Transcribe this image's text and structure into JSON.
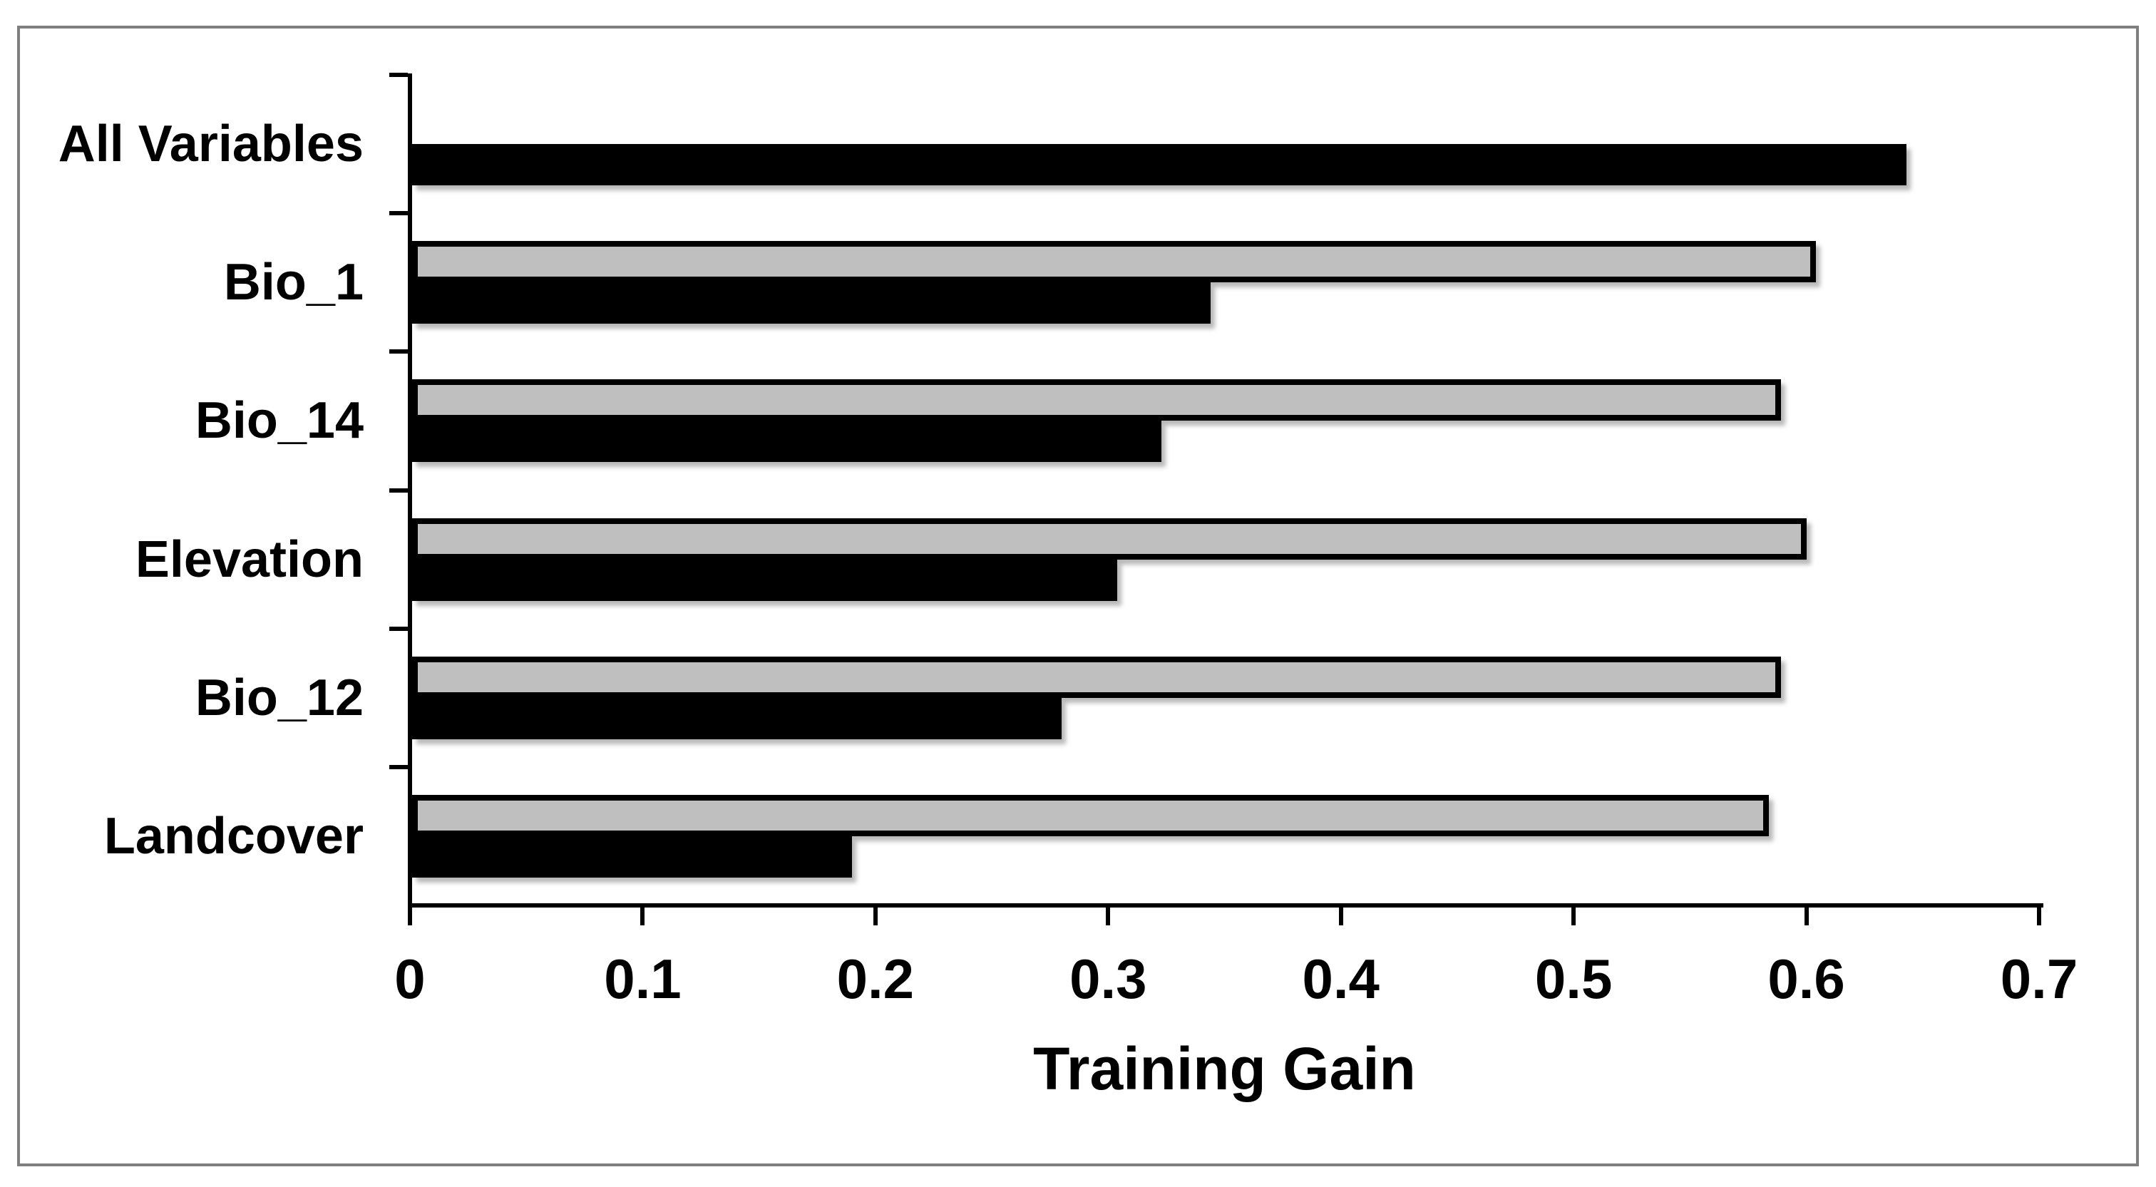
{
  "figure": {
    "background_color": "#ffffff",
    "border_color": "#7f7f7f"
  },
  "chart_data": {
    "type": "bar",
    "orientation": "horizontal",
    "title": "",
    "xlabel": "Training Gain",
    "ylabel": "",
    "xlim": [
      0,
      0.7
    ],
    "x_ticks": [
      0,
      0.1,
      0.2,
      0.3,
      0.4,
      0.5,
      0.6,
      0.7
    ],
    "x_tick_labels": [
      "0",
      "0.1",
      "0.2",
      "0.3",
      "0.4",
      "0.5",
      "0.6",
      "0.7"
    ],
    "categories": [
      "All Variables",
      "Bio_1",
      "Bio_14",
      "Elevation",
      "Bio_12",
      "Landcover"
    ],
    "series": [
      {
        "name": "gray-bars",
        "color": "#bfbfbf",
        "outline_color": "#000000",
        "values": [
          null,
          0.604,
          0.589,
          0.6,
          0.589,
          0.584
        ]
      },
      {
        "name": "black-bars",
        "color": "#000000",
        "outline_color": "#000000",
        "values": [
          0.643,
          0.344,
          0.323,
          0.304,
          0.28,
          0.19
        ]
      }
    ],
    "legend": "none",
    "grid": false,
    "axis_color": "#000000",
    "bar_shadow": true
  }
}
